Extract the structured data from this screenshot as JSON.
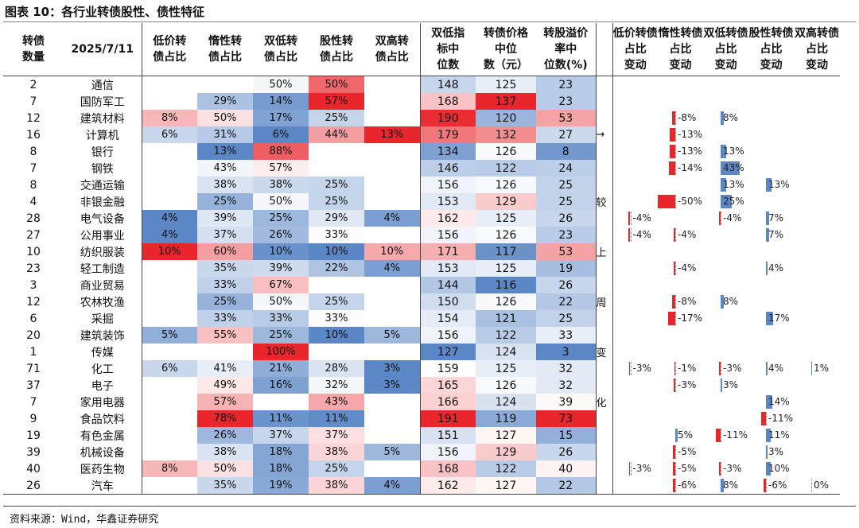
{
  "title": "图表 10：各行业转债股性、债性特征",
  "source": "资料来源：Wind，华鑫证券研究",
  "arrow_label": "→",
  "headers": [
    "转债数量",
    "2025/7/11",
    "低价转债占比",
    "惰性转债占比",
    "双低转债占比",
    "股性转债占比",
    "双高转债占比",
    "双低指标中位数",
    "转债价格中位数（元）",
    "转股溢价率中位数(%)",
    "",
    "低价转债占比变动",
    "惰性转债占比变动",
    "双低转债占比变动",
    "股性转债占比变动",
    "双高转债占比变动"
  ],
  "note_chars": [
    "",
    "",
    "",
    "→",
    "",
    "",
    "",
    "较",
    "",
    "",
    "上",
    "",
    "",
    "周",
    "",
    "",
    "变",
    "",
    "",
    "化",
    "",
    "",
    "",
    ""
  ],
  "rows": [
    {
      "n": "2",
      "ind": "通信",
      "low": "",
      "idle": "",
      "dl": "50%",
      "stk": "50%",
      "dh": "",
      "dli": "148",
      "px": "125",
      "prem": "23",
      "c": [
        "",
        "",
        "",
        "",
        ""
      ]
    },
    {
      "n": "7",
      "ind": "国防军工",
      "low": "",
      "idle": "29%",
      "dl": "14%",
      "stk": "57%",
      "dh": "",
      "dli": "168",
      "px": "137",
      "prem": "23",
      "c": [
        "",
        "",
        "",
        "",
        ""
      ]
    },
    {
      "n": "12",
      "ind": "建筑材料",
      "low": "8%",
      "idle": "50%",
      "dl": "17%",
      "stk": "25%",
      "dh": "",
      "dli": "190",
      "px": "120",
      "prem": "53",
      "c": [
        "",
        "-8%",
        "8%",
        "",
        ""
      ]
    },
    {
      "n": "16",
      "ind": "计算机",
      "low": "6%",
      "idle": "31%",
      "dl": "6%",
      "stk": "44%",
      "dh": "13%",
      "dli": "179",
      "px": "132",
      "prem": "27",
      "c": [
        "",
        "-13%",
        "",
        "",
        ""
      ]
    },
    {
      "n": "8",
      "ind": "银行",
      "low": "",
      "idle": "13%",
      "dl": "88%",
      "stk": "",
      "dh": "",
      "dli": "134",
      "px": "126",
      "prem": "8",
      "c": [
        "",
        "-13%",
        "13%",
        "",
        ""
      ]
    },
    {
      "n": "7",
      "ind": "钢铁",
      "low": "",
      "idle": "43%",
      "dl": "57%",
      "stk": "",
      "dh": "",
      "dli": "146",
      "px": "122",
      "prem": "24",
      "c": [
        "",
        "-14%",
        "43%",
        "",
        ""
      ]
    },
    {
      "n": "8",
      "ind": "交通运输",
      "low": "",
      "idle": "38%",
      "dl": "38%",
      "stk": "25%",
      "dh": "",
      "dli": "156",
      "px": "126",
      "prem": "25",
      "c": [
        "",
        "",
        "13%",
        "13%",
        ""
      ]
    },
    {
      "n": "4",
      "ind": "非银金融",
      "low": "",
      "idle": "25%",
      "dl": "50%",
      "stk": "25%",
      "dh": "",
      "dli": "153",
      "px": "129",
      "prem": "25",
      "c": [
        "",
        "-50%",
        "25%",
        "",
        ""
      ]
    },
    {
      "n": "28",
      "ind": "电气设备",
      "low": "4%",
      "idle": "39%",
      "dl": "25%",
      "stk": "29%",
      "dh": "4%",
      "dli": "162",
      "px": "125",
      "prem": "26",
      "c": [
        "-4%",
        "",
        "-4%",
        "7%",
        ""
      ]
    },
    {
      "n": "27",
      "ind": "公用事业",
      "low": "4%",
      "idle": "37%",
      "dl": "26%",
      "stk": "33%",
      "dh": "",
      "dli": "156",
      "px": "126",
      "prem": "23",
      "c": [
        "-4%",
        "-4%",
        "",
        "7%",
        ""
      ]
    },
    {
      "n": "10",
      "ind": "纺织服装",
      "low": "10%",
      "idle": "60%",
      "dl": "10%",
      "stk": "10%",
      "dh": "10%",
      "dli": "171",
      "px": "117",
      "prem": "53",
      "c": [
        "",
        "",
        "",
        "",
        ""
      ]
    },
    {
      "n": "23",
      "ind": "轻工制造",
      "low": "",
      "idle": "35%",
      "dl": "39%",
      "stk": "22%",
      "dh": "4%",
      "dli": "153",
      "px": "125",
      "prem": "19",
      "c": [
        "",
        "-4%",
        "",
        "4%",
        ""
      ]
    },
    {
      "n": "3",
      "ind": "商业贸易",
      "low": "",
      "idle": "33%",
      "dl": "67%",
      "stk": "",
      "dh": "",
      "dli": "144",
      "px": "116",
      "prem": "26",
      "c": [
        "",
        "",
        "",
        "",
        ""
      ]
    },
    {
      "n": "12",
      "ind": "农林牧渔",
      "low": "",
      "idle": "25%",
      "dl": "50%",
      "stk": "25%",
      "dh": "",
      "dli": "150",
      "px": "126",
      "prem": "22",
      "c": [
        "",
        "-8%",
        "8%",
        "",
        ""
      ]
    },
    {
      "n": "6",
      "ind": "采掘",
      "low": "",
      "idle": "33%",
      "dl": "33%",
      "stk": "33%",
      "dh": "",
      "dli": "154",
      "px": "121",
      "prem": "25",
      "c": [
        "",
        "-17%",
        "",
        "17%",
        ""
      ]
    },
    {
      "n": "20",
      "ind": "建筑装饰",
      "low": "5%",
      "idle": "55%",
      "dl": "25%",
      "stk": "10%",
      "dh": "5%",
      "dli": "156",
      "px": "122",
      "prem": "33",
      "c": [
        "",
        "",
        "",
        "",
        ""
      ]
    },
    {
      "n": "1",
      "ind": "传媒",
      "low": "",
      "idle": "",
      "dl": "100%",
      "stk": "",
      "dh": "",
      "dli": "127",
      "px": "124",
      "prem": "3",
      "c": [
        "",
        "",
        "",
        "",
        ""
      ]
    },
    {
      "n": "71",
      "ind": "化工",
      "low": "6%",
      "idle": "41%",
      "dl": "21%",
      "stk": "28%",
      "dh": "3%",
      "dli": "159",
      "px": "125",
      "prem": "32",
      "c": [
        "-3%",
        "-1%",
        "-3%",
        "4%",
        "1%"
      ]
    },
    {
      "n": "37",
      "ind": "电子",
      "low": "",
      "idle": "49%",
      "dl": "16%",
      "stk": "32%",
      "dh": "3%",
      "dli": "165",
      "px": "126",
      "prem": "32",
      "c": [
        "",
        "-3%",
        "3%",
        "",
        ""
      ]
    },
    {
      "n": "7",
      "ind": "家用电器",
      "low": "",
      "idle": "57%",
      "dl": "",
      "stk": "43%",
      "dh": "",
      "dli": "166",
      "px": "124",
      "prem": "39",
      "c": [
        "",
        "",
        "",
        "14%",
        ""
      ]
    },
    {
      "n": "9",
      "ind": "食品饮料",
      "low": "",
      "idle": "78%",
      "dl": "11%",
      "stk": "11%",
      "dh": "",
      "dli": "191",
      "px": "119",
      "prem": "73",
      "c": [
        "",
        "",
        "",
        "-11%",
        ""
      ]
    },
    {
      "n": "19",
      "ind": "有色金属",
      "low": "",
      "idle": "26%",
      "dl": "37%",
      "stk": "37%",
      "dh": "",
      "dli": "151",
      "px": "127",
      "prem": "15",
      "c": [
        "",
        "5%",
        "-11%",
        "11%",
        ""
      ]
    },
    {
      "n": "39",
      "ind": "机械设备",
      "low": "",
      "idle": "38%",
      "dl": "18%",
      "stk": "38%",
      "dh": "5%",
      "dli": "156",
      "px": "129",
      "prem": "26",
      "c": [
        "",
        "-5%",
        "",
        "3%",
        ""
      ]
    },
    {
      "n": "40",
      "ind": "医药生物",
      "low": "8%",
      "idle": "50%",
      "dl": "18%",
      "stk": "25%",
      "dh": "",
      "dli": "168",
      "px": "122",
      "prem": "40",
      "c": [
        "-3%",
        "-5%",
        "-3%",
        "10%",
        ""
      ]
    },
    {
      "n": "26",
      "ind": "汽车",
      "low": "",
      "idle": "35%",
      "dl": "19%",
      "stk": "38%",
      "dh": "4%",
      "dli": "162",
      "px": "127",
      "prem": "22",
      "c": [
        "",
        "-6%",
        "8%",
        "-6%",
        "0%"
      ]
    }
  ]
}
